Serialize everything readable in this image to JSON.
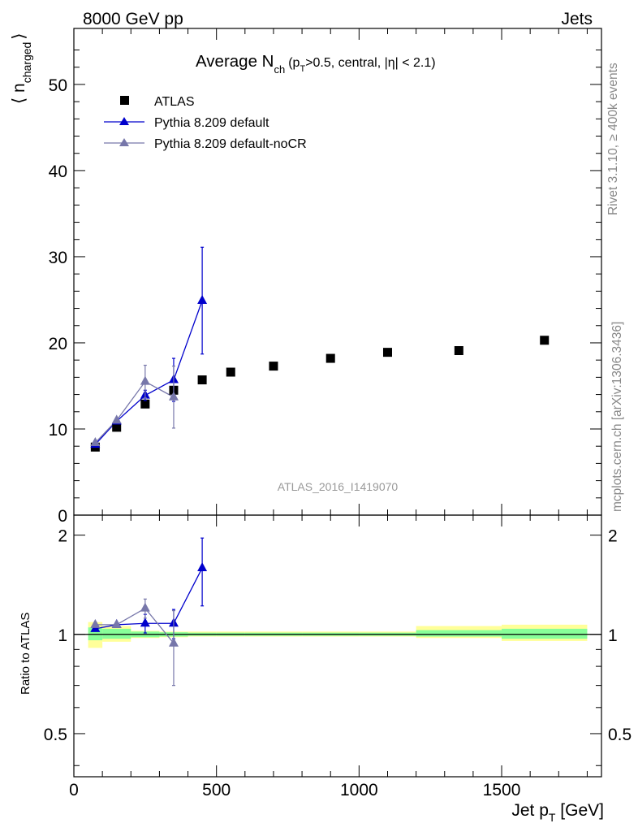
{
  "header": {
    "energy_label": "8000 GeV pp",
    "process_label": "Jets"
  },
  "side_labels": {
    "rivet": "Rivet 3.1.10, ≥ 400k events",
    "mcplots": "mcplots.cern.ch [arXiv:1306.3436]"
  },
  "chart_data": [
    {
      "type": "scatter",
      "title": {
        "main": "Average N",
        "sub": "ch",
        "rest": "(p",
        "rest_sub": "T",
        "rest2": ">0.5, central, |η| < 2.1)"
      },
      "ylabel": {
        "main": "⟨ n",
        "sub": "charged",
        "close": "⟩"
      },
      "watermark": "ATLAS_2016_I1419070",
      "xlim": [
        0,
        1850
      ],
      "ylim": [
        0,
        56.5
      ],
      "yticks": [
        0,
        10,
        20,
        30,
        40,
        50
      ],
      "ytick_labels": [
        "0",
        "10",
        "20",
        "30",
        "40",
        "50"
      ],
      "legend": {
        "placement": "top-left",
        "entries": [
          "ATLAS",
          "Pythia 8.209 default",
          "Pythia 8.209 default-noCR"
        ]
      },
      "series": [
        {
          "name": "ATLAS",
          "marker": "square",
          "color": "#000000",
          "x": [
            75,
            150,
            250,
            350,
            450,
            550,
            700,
            900,
            1100,
            1350,
            1650
          ],
          "y": [
            7.9,
            10.2,
            12.9,
            14.5,
            15.7,
            16.6,
            17.3,
            18.2,
            18.9,
            19.1,
            20.3
          ]
        },
        {
          "name": "Pythia 8.209 default",
          "marker": "triangle",
          "color": "#0000cc",
          "x": [
            75,
            150,
            250,
            350,
            450
          ],
          "y": [
            8.2,
            10.9,
            13.9,
            15.7,
            24.9
          ],
          "yerr": [
            0.2,
            0.3,
            0.6,
            2.5,
            6.2
          ]
        },
        {
          "name": "Pythia 8.209 default-noCR",
          "marker": "triangle",
          "color": "#7777aa",
          "x": [
            75,
            150,
            250,
            350
          ],
          "y": [
            8.4,
            11.0,
            15.5,
            13.7
          ],
          "yerr": [
            0.2,
            0.3,
            1.9,
            3.6
          ]
        }
      ]
    },
    {
      "type": "scatter",
      "ylabel": "Ratio to ATLAS",
      "xlabel": {
        "main": "Jet p",
        "sub": "T",
        "rest": " [GeV]"
      },
      "xlim": [
        0,
        1850
      ],
      "ylim": [
        0.37,
        2.3
      ],
      "yscale": "log",
      "xticks": [
        0,
        500,
        1000,
        1500
      ],
      "xtick_labels": [
        "0",
        "500",
        "1000",
        "1500"
      ],
      "yticks": [
        0.5,
        1,
        2
      ],
      "ytick_labels": [
        "0.5",
        "1",
        "2"
      ],
      "bands": {
        "edges": [
          50,
          100,
          200,
          300,
          400,
          500,
          600,
          800,
          1000,
          1200,
          1500,
          1800
        ],
        "inner_color": "#88ff99",
        "outer_color": "#ffff99",
        "inner": [
          [
            0.96,
            1.05
          ],
          [
            0.97,
            1.04
          ],
          [
            0.98,
            1.02
          ],
          [
            0.985,
            1.015
          ],
          [
            0.99,
            1.012
          ],
          [
            0.99,
            1.012
          ],
          [
            0.99,
            1.012
          ],
          [
            0.99,
            1.012
          ],
          [
            0.99,
            1.012
          ],
          [
            0.985,
            1.03
          ],
          [
            0.97,
            1.04
          ]
        ],
        "outer": [
          [
            0.91,
            1.09
          ],
          [
            0.95,
            1.06
          ],
          [
            0.975,
            1.025
          ],
          [
            0.98,
            1.02
          ],
          [
            0.985,
            1.02
          ],
          [
            0.985,
            1.02
          ],
          [
            0.985,
            1.02
          ],
          [
            0.985,
            1.02
          ],
          [
            0.985,
            1.02
          ],
          [
            0.975,
            1.06
          ],
          [
            0.955,
            1.07
          ]
        ]
      },
      "series": [
        {
          "name": "Pythia 8.209 default",
          "marker": "triangle",
          "color": "#0000cc",
          "x": [
            75,
            150,
            250,
            350,
            450
          ],
          "y": [
            1.04,
            1.07,
            1.08,
            1.08,
            1.59
          ],
          "yerr_low": [
            0.02,
            0.02,
            0.07,
            0.11,
            0.37
          ],
          "yerr_high": [
            0.02,
            0.02,
            0.07,
            0.11,
            0.37
          ]
        },
        {
          "name": "Pythia 8.209 default-noCR",
          "marker": "triangle",
          "color": "#7777aa",
          "x": [
            75,
            150,
            250,
            350
          ],
          "y": [
            1.07,
            1.07,
            1.2,
            0.94
          ],
          "yerr_low": [
            0.02,
            0.02,
            0.08,
            0.24
          ],
          "yerr_high": [
            0.02,
            0.02,
            0.08,
            0.24
          ]
        }
      ]
    }
  ]
}
